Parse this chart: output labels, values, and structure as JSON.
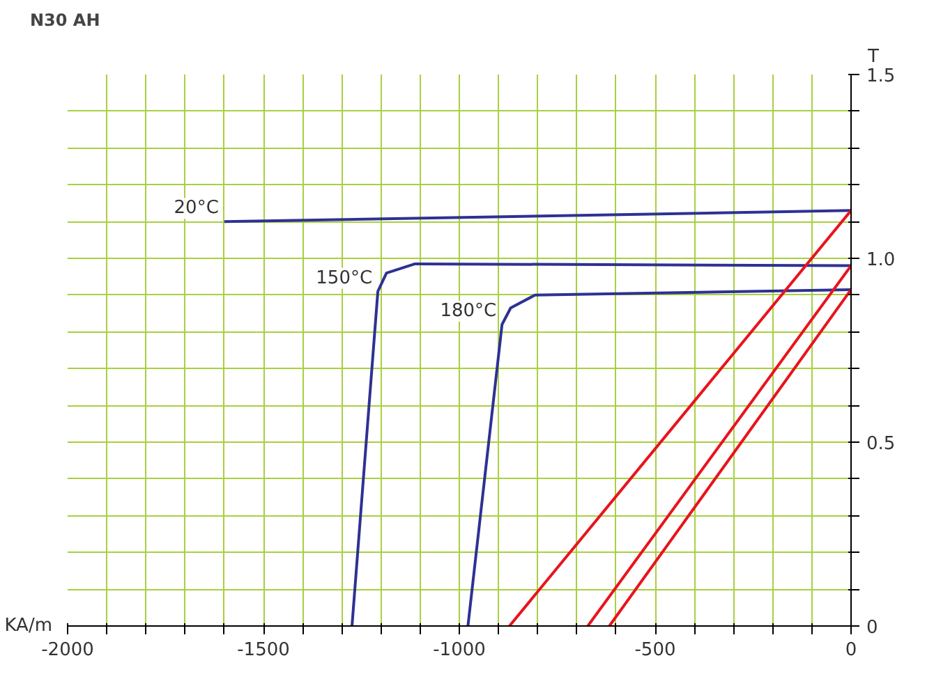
{
  "chart_data": {
    "type": "line",
    "title": "N30 AH",
    "xlabel": "KA/m",
    "ylabel": "T",
    "xlim": [
      -2000,
      0
    ],
    "ylim": [
      0,
      1.5
    ],
    "xticks": [
      -2000,
      {
        "value": -1900,
        "label": null
      },
      {
        "value": -1800,
        "label": null
      },
      {
        "value": -1700,
        "label": null
      },
      {
        "value": -1600,
        "label": null
      },
      -1500,
      {
        "value": -1400,
        "label": null
      },
      {
        "value": -1300,
        "label": null
      },
      {
        "value": -1200,
        "label": null
      },
      {
        "value": -1100,
        "label": null
      },
      -1000,
      {
        "value": -900,
        "label": null
      },
      {
        "value": -800,
        "label": null
      },
      {
        "value": -700,
        "label": null
      },
      {
        "value": -600,
        "label": null
      },
      -500,
      {
        "value": -400,
        "label": null
      },
      {
        "value": -300,
        "label": null
      },
      {
        "value": -200,
        "label": null
      },
      {
        "value": -100,
        "label": null
      },
      0
    ],
    "yticks": [
      0,
      {
        "value": 0.1,
        "label": null
      },
      {
        "value": 0.2,
        "label": null
      },
      {
        "value": 0.3,
        "label": null
      },
      {
        "value": 0.4,
        "label": null
      },
      0.5,
      {
        "value": 0.6,
        "label": null
      },
      {
        "value": 0.7,
        "label": null
      },
      {
        "value": 0.8,
        "label": null
      },
      {
        "value": 0.9,
        "label": null
      },
      {
        "value": 1.0,
        "label": "1.0"
      },
      {
        "value": 1.1,
        "label": null
      },
      {
        "value": 1.2,
        "label": null
      },
      {
        "value": 1.3,
        "label": null
      },
      {
        "value": 1.4,
        "label": null
      },
      1.5
    ],
    "grid": true,
    "line_style": "solid",
    "series": [
      {
        "color": "#2e3192",
        "x": [
          -1600,
          0
        ],
        "values": [
          1.1,
          1.13
        ]
      },
      {
        "color": "#2e3192",
        "x": [
          -1274,
          -1208,
          -1186,
          -1113,
          0
        ],
        "values": [
          0,
          0.91,
          0.96,
          0.985,
          0.98
        ]
      },
      {
        "color": "#2e3192",
        "x": [
          -978,
          -891,
          -869,
          -807,
          0
        ],
        "values": [
          0,
          0.82,
          0.865,
          0.9,
          0.915
        ]
      },
      {
        "color": "#e8141c",
        "x": [
          -872,
          0
        ],
        "values": [
          0,
          1.13
        ]
      },
      {
        "color": "#e8141c",
        "x": [
          -672,
          0
        ],
        "values": [
          0,
          0.98
        ]
      },
      {
        "color": "#e8141c",
        "x": [
          -617,
          0
        ],
        "values": [
          0,
          0.915
        ]
      }
    ],
    "annotations": [
      {
        "text": "20°C",
        "x": -1600,
        "y": 1.1
      },
      {
        "text": "150°C",
        "x": -1208,
        "y": 0.91
      },
      {
        "text": "180°C",
        "x": -891,
        "y": 0.82
      }
    ]
  }
}
